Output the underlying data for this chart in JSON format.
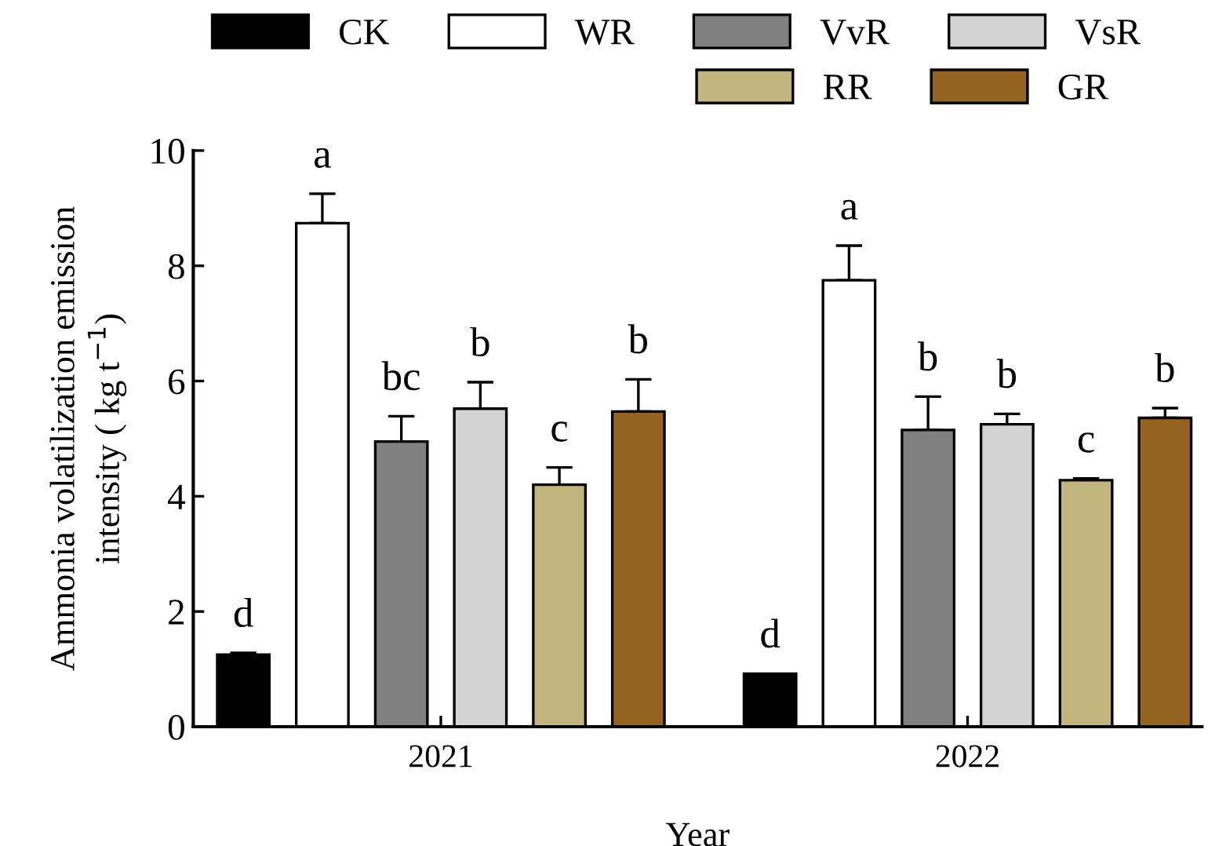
{
  "chart_data": {
    "type": "bar",
    "xlabel": "Year",
    "ylabel": "Ammonia volatilization emission\nintensity ( kg t$^{−1}$)",
    "categories": [
      "2021",
      "2022"
    ],
    "series": [
      {
        "name": "CK",
        "color": "#000000",
        "values": [
          1.25,
          0.92
        ],
        "errors": [
          [
            1.25,
            1.28
          ],
          null
        ]
      },
      {
        "name": "WR",
        "color": "#ffffff",
        "values": [
          8.74,
          7.75
        ],
        "errors": [
          [
            8.74,
            9.25
          ],
          [
            7.75,
            8.35
          ]
        ]
      },
      {
        "name": "VvR",
        "color": "#808080",
        "values": [
          4.95,
          5.15
        ],
        "errors": [
          [
            4.95,
            5.39
          ],
          [
            5.15,
            5.73
          ]
        ]
      },
      {
        "name": "VsR",
        "color": "#d3d3d3",
        "values": [
          5.52,
          5.25
        ],
        "errors": [
          [
            5.52,
            5.98
          ],
          [
            5.25,
            5.43
          ]
        ]
      },
      {
        "name": "RR",
        "color": "#c2b67e",
        "values": [
          4.2,
          4.28
        ],
        "errors": [
          [
            4.2,
            4.5
          ],
          [
            4.28,
            4.31
          ]
        ]
      },
      {
        "name": "GR",
        "color": "#956321",
        "values": [
          5.47,
          5.36
        ],
        "errors": [
          [
            5.47,
            6.03
          ],
          [
            5.36,
            5.53
          ]
        ]
      }
    ],
    "annotations": [
      "d",
      "a",
      "bc",
      "b",
      "c",
      "b",
      "d",
      "a",
      "b",
      "b",
      "c",
      "b"
    ],
    "ylim": [
      0,
      10
    ],
    "yticks": [
      0,
      2,
      4,
      6,
      8,
      10
    ],
    "grid": false,
    "legend": "top"
  }
}
